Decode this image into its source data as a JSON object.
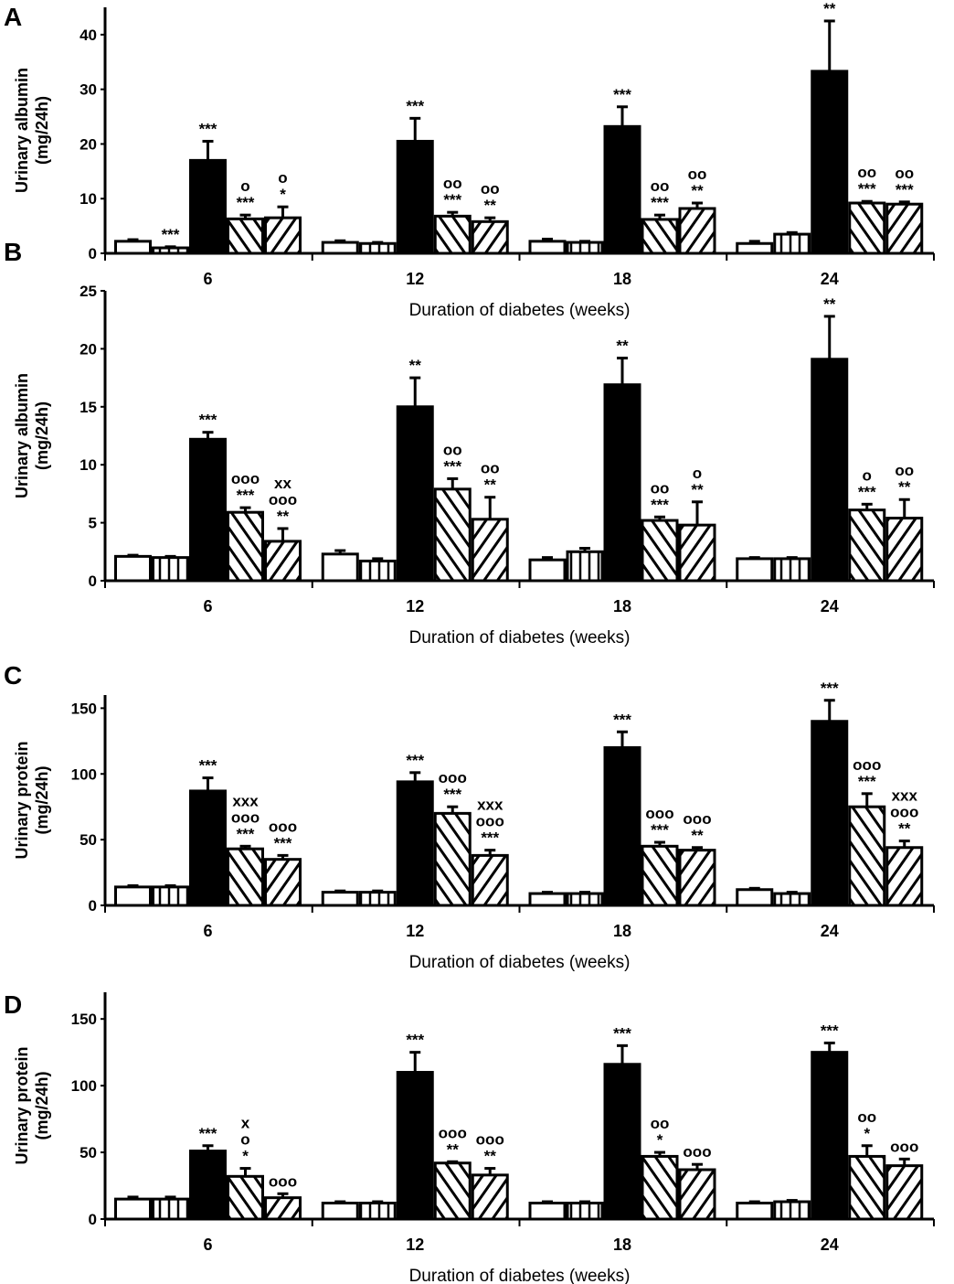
{
  "chart_data": [
    {
      "type": "bar",
      "panel_label": "A",
      "ylabel": [
        "Urinary albumin",
        "(mg/24h)"
      ],
      "xlabel": "Duration of diabetes (weeks)",
      "categories": [
        "6",
        "12",
        "18",
        "24"
      ],
      "yticks": [
        0,
        10,
        20,
        30,
        40
      ],
      "ylim": [
        0,
        45
      ],
      "series": [
        {
          "pattern": "open",
          "values": [
            2.2,
            2.0,
            2.2,
            1.8
          ],
          "errors": [
            0.3,
            0.3,
            0.4,
            0.4
          ]
        },
        {
          "pattern": "vertical",
          "values": [
            1.0,
            1.8,
            2.0,
            3.5
          ],
          "errors": [
            0.2,
            0.2,
            0.2,
            0.3
          ]
        },
        {
          "pattern": "solid",
          "values": [
            17.0,
            20.5,
            23.2,
            33.3
          ],
          "errors": [
            3.5,
            4.2,
            3.6,
            9.2
          ]
        },
        {
          "pattern": "diag-down",
          "values": [
            6.3,
            6.8,
            6.2,
            9.2
          ],
          "errors": [
            0.7,
            0.7,
            0.8,
            0.3
          ]
        },
        {
          "pattern": "diag-up",
          "values": [
            6.5,
            5.8,
            8.2,
            9.0
          ],
          "errors": [
            2.0,
            0.7,
            1.0,
            0.4
          ]
        }
      ],
      "annotations": [
        [
          "",
          "***",
          "***",
          "o\n***",
          "o\n*"
        ],
        [
          "",
          "",
          "***",
          "oo\n***",
          "oo\n**"
        ],
        [
          "",
          "",
          "***",
          "oo\n***",
          "oo\n**"
        ],
        [
          "",
          "",
          "**",
          "oo\n***",
          "oo\n***"
        ]
      ]
    },
    {
      "type": "bar",
      "panel_label": "B",
      "ylabel": [
        "Urinary albumin",
        "(mg/24h)"
      ],
      "xlabel": "Duration of diabetes (weeks)",
      "categories": [
        "6",
        "12",
        "18",
        "24"
      ],
      "yticks": [
        0,
        5,
        10,
        15,
        20,
        25
      ],
      "ylim": [
        0,
        25
      ],
      "series": [
        {
          "pattern": "open",
          "values": [
            2.1,
            2.3,
            1.8,
            1.9
          ],
          "errors": [
            0.1,
            0.3,
            0.2,
            0.1
          ]
        },
        {
          "pattern": "vertical",
          "values": [
            2.0,
            1.7,
            2.5,
            1.9
          ],
          "errors": [
            0.1,
            0.2,
            0.3,
            0.1
          ]
        },
        {
          "pattern": "solid",
          "values": [
            12.2,
            15.0,
            16.9,
            19.1
          ],
          "errors": [
            0.6,
            2.5,
            2.3,
            3.7
          ]
        },
        {
          "pattern": "diag-down",
          "values": [
            5.9,
            7.9,
            5.2,
            6.1
          ],
          "errors": [
            0.4,
            0.9,
            0.3,
            0.5
          ]
        },
        {
          "pattern": "diag-up",
          "values": [
            3.4,
            5.3,
            4.8,
            5.4
          ],
          "errors": [
            1.1,
            1.9,
            2.0,
            1.6
          ]
        }
      ],
      "annotations": [
        [
          "",
          "",
          "***",
          "ooo\n***",
          "xx\nooo\n**"
        ],
        [
          "",
          "",
          "**",
          "oo\n***",
          "oo\n**"
        ],
        [
          "",
          "",
          "**",
          "oo\n***",
          "o\n**"
        ],
        [
          "",
          "",
          "**",
          "o\n***",
          "oo\n**"
        ]
      ]
    },
    {
      "type": "bar",
      "panel_label": "C",
      "ylabel": [
        "Urinary protein",
        "(mg/24h)"
      ],
      "xlabel": "Duration of diabetes (weeks)",
      "categories": [
        "6",
        "12",
        "18",
        "24"
      ],
      "yticks": [
        0,
        50,
        100,
        150
      ],
      "ylim": [
        0,
        160
      ],
      "series": [
        {
          "pattern": "open",
          "values": [
            14,
            10,
            9,
            12
          ],
          "errors": [
            1,
            1,
            1,
            1
          ]
        },
        {
          "pattern": "vertical",
          "values": [
            14,
            10,
            9,
            9
          ],
          "errors": [
            1,
            1,
            1,
            1
          ]
        },
        {
          "pattern": "solid",
          "values": [
            87,
            94,
            120,
            140
          ],
          "errors": [
            10,
            7,
            12,
            16
          ]
        },
        {
          "pattern": "diag-down",
          "values": [
            43,
            70,
            45,
            75
          ],
          "errors": [
            2,
            5,
            3,
            10
          ]
        },
        {
          "pattern": "diag-up",
          "values": [
            35,
            38,
            42,
            44
          ],
          "errors": [
            3,
            4,
            2,
            5
          ]
        }
      ],
      "annotations": [
        [
          "",
          "",
          "***",
          "xxx\nooo\n***",
          "ooo\n***"
        ],
        [
          "",
          "",
          "***",
          "ooo\n***",
          "xxx\nooo\n***"
        ],
        [
          "",
          "",
          "***",
          "ooo\n***",
          "ooo\n**"
        ],
        [
          "",
          "",
          "***",
          "ooo\n***",
          "xxx\nooo\n**"
        ]
      ]
    },
    {
      "type": "bar",
      "panel_label": "D",
      "ylabel": [
        "Urinary protein",
        "(mg/24h)"
      ],
      "xlabel": "Duration of diabetes (weeks)",
      "categories": [
        "6",
        "12",
        "18",
        "24"
      ],
      "yticks": [
        0,
        50,
        100,
        150
      ],
      "ylim": [
        0,
        170
      ],
      "series": [
        {
          "pattern": "open",
          "values": [
            15,
            12,
            12,
            12
          ],
          "errors": [
            1.5,
            1,
            1,
            1
          ]
        },
        {
          "pattern": "vertical",
          "values": [
            15,
            12,
            12,
            13
          ],
          "errors": [
            1.5,
            1,
            1,
            1
          ]
        },
        {
          "pattern": "solid",
          "values": [
            51,
            110,
            116,
            125
          ],
          "errors": [
            4,
            15,
            14,
            7
          ]
        },
        {
          "pattern": "diag-down",
          "values": [
            32,
            42,
            47,
            47
          ],
          "errors": [
            6,
            1,
            3,
            8
          ]
        },
        {
          "pattern": "diag-up",
          "values": [
            16,
            33,
            37,
            40
          ],
          "errors": [
            3,
            5,
            4,
            5
          ]
        }
      ],
      "annotations": [
        [
          "",
          "",
          "***",
          "x\no\n*",
          "ooo"
        ],
        [
          "",
          "",
          "***",
          "ooo\n**",
          "ooo\n**"
        ],
        [
          "",
          "",
          "***",
          "oo\n*",
          "ooo"
        ],
        [
          "",
          "",
          "***",
          "oo\n*",
          "ooo"
        ]
      ]
    }
  ]
}
